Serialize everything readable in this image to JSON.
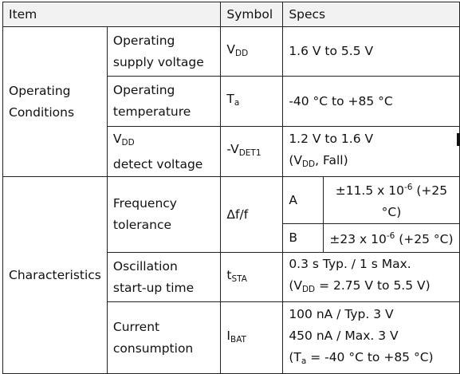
{
  "header": {
    "item": "Item",
    "symbol": "Symbol",
    "specs": "Specs"
  },
  "groups": {
    "operating": {
      "line1": "Operating",
      "line2": "Conditions"
    },
    "characteristics": {
      "label": "Characteristics"
    }
  },
  "rows": {
    "supply": {
      "item1": "Operating",
      "item2": "supply voltage",
      "sym": "V",
      "sym_sub": "DD",
      "spec": "1.6 V to 5.5 V"
    },
    "temp": {
      "item1": "Operating",
      "item2": "temperature",
      "sym": "T",
      "sym_sub": "a",
      "spec": "-40 °C to +85 °C"
    },
    "detect": {
      "item1_main": "V",
      "item1_sub": "DD",
      "item2": "detect voltage",
      "sym": "-V",
      "sym_sub": "DET1",
      "spec1": "1.2 V to 1.6 V",
      "spec2_pre": "(V",
      "spec2_sub": "DD",
      "spec2_post": ", Fall)"
    },
    "freq": {
      "item1": "Frequency",
      "item2": "tolerance",
      "sym": "Δf/f",
      "grades": [
        {
          "grade": "A",
          "pre": "±11.5 x 10",
          "exp": "-6",
          "post": " (+25 °C)"
        },
        {
          "grade": "B",
          "pre": "±23 x 10",
          "exp": "-6",
          "post": " (+25 °C)"
        }
      ]
    },
    "osc": {
      "item1": "Oscillation",
      "item2": "start-up time",
      "sym": "t",
      "sym_sub": "STA",
      "spec1": "0.3 s Typ. / 1 s Max.",
      "spec2_pre": "(V",
      "spec2_sub": "DD",
      "spec2_post": " = 2.75 V to 5.5 V)"
    },
    "current": {
      "item1": "Current",
      "item2": "consumption",
      "sym": "I",
      "sym_sub": "BAT",
      "spec1": "100 nA / Typ. 3 V",
      "spec2": "450 nA / Max. 3 V",
      "spec3_pre": "(T",
      "spec3_sub": "a",
      "spec3_post": " = -40 °C to +85 °C)"
    }
  }
}
